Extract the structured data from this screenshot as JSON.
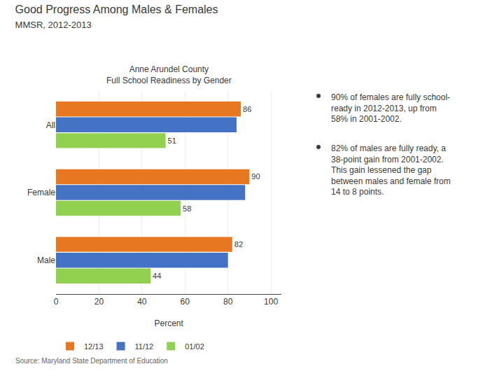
{
  "chart_data": {
    "type": "bar",
    "orientation": "horizontal",
    "title": "Good Progress Among Males & Females",
    "subtitle": "MMSR, 2012-2013",
    "chart_title": [
      "Anne Arundel County",
      "Full School Readiness by Gender"
    ],
    "categories": [
      "All",
      "Female",
      "Male"
    ],
    "series": [
      {
        "name": "12/13",
        "color": "#E87722",
        "values": [
          86,
          90,
          82
        ],
        "data_labels": true
      },
      {
        "name": "11/12",
        "color": "#4472C4",
        "values": [
          84,
          88,
          80
        ],
        "data_labels": false
      },
      {
        "name": "01/02",
        "color": "#92D050",
        "values": [
          51,
          58,
          44
        ],
        "data_labels": true
      }
    ],
    "xlabel": "Percent",
    "xlim": [
      0,
      105
    ],
    "xticks": [
      0,
      20,
      40,
      60,
      80,
      100
    ],
    "grid": true,
    "legend": "bottom",
    "annotations": [
      [
        "90% of females are fully school-",
        "ready in 2012-2013, up from",
        "58% in 2001-2002."
      ],
      [
        "82% of males are fully ready, a",
        "38-point gain from 2001-2002.",
        "This gain lessened the gap",
        "between males and female from",
        "14 to 8 points."
      ]
    ],
    "source": "Source: Maryland State Department of Education"
  }
}
